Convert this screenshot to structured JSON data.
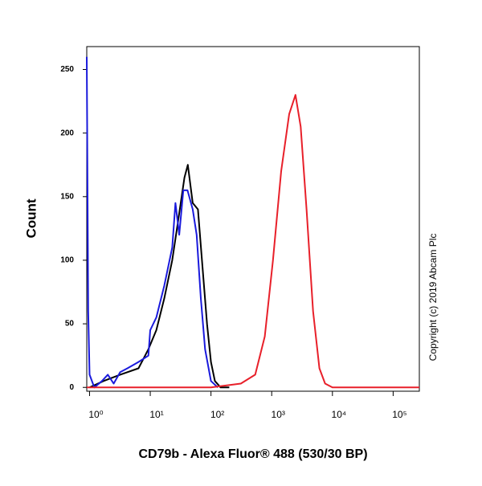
{
  "chart_data": {
    "type": "line",
    "xlabel": "CD79b - Alexa Fluor® 488 (530/30 BP)",
    "ylabel": "Count",
    "annotation": "Copyright (c) 2019 Abcam Plc",
    "xscale": "log",
    "xlim": [
      0.9,
      270000
    ],
    "ylim": [
      -3,
      268
    ],
    "xticks": [
      {
        "value": 1,
        "label": "10⁰"
      },
      {
        "value": 10,
        "label": "10¹"
      },
      {
        "value": 100,
        "label": "10²"
      },
      {
        "value": 1000,
        "label": "10³"
      },
      {
        "value": 10000,
        "label": "10⁴"
      },
      {
        "value": 100000,
        "label": "10⁵"
      }
    ],
    "yticks": [
      0,
      50,
      100,
      150,
      200,
      250
    ],
    "series": [
      {
        "color": "#000000",
        "x": [
          1,
          1.7,
          3.2,
          6.4,
          9.3,
          12.6,
          17,
          23,
          28.6,
          36.6,
          41.6,
          50,
          61,
          71,
          86,
          100,
          116,
          144,
          200
        ],
        "values": [
          0,
          5,
          10,
          15,
          30,
          45,
          70,
          100,
          130,
          165,
          175,
          145,
          140,
          100,
          50,
          20,
          5,
          0,
          0
        ]
      },
      {
        "color": "#1a1adc",
        "x": [
          0.9,
          0.95,
          1,
          1.2,
          1.6,
          2,
          2.5,
          3.2,
          4.2,
          6.4,
          9.3,
          10,
          12.6,
          17,
          23,
          26,
          30,
          35,
          41,
          50,
          58,
          68,
          80,
          100,
          130
        ],
        "values": [
          260,
          60,
          10,
          0,
          5,
          10,
          3,
          12,
          15,
          20,
          25,
          45,
          55,
          80,
          110,
          145,
          120,
          155,
          155,
          140,
          120,
          70,
          30,
          5,
          0
        ]
      },
      {
        "color": "#e8202a",
        "x": [
          0.9,
          100,
          310,
          535,
          770,
          1050,
          1430,
          1940,
          2460,
          3000,
          3750,
          4800,
          6100,
          7570,
          10000,
          270000
        ],
        "values": [
          0,
          0,
          3,
          10,
          40,
          100,
          170,
          215,
          230,
          205,
          140,
          60,
          15,
          3,
          0,
          0
        ]
      }
    ]
  }
}
